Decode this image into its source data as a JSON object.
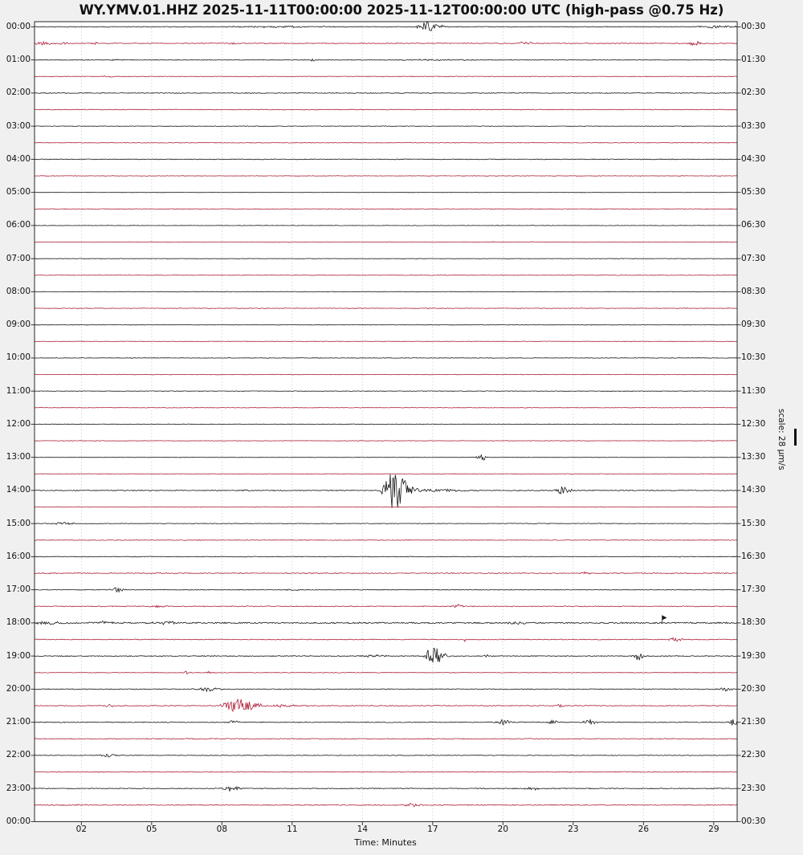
{
  "title": "WY.YMV.01.HHZ 2025-11-11T00:00:00 2025-11-12T00:00:00 UTC (high-pass @0.75 Hz)",
  "chart_data": {
    "type": "line",
    "subtype": "helicorder-dayplot",
    "title": "WY.YMV.01.HHZ 2025-11-11T00:00:00 2025-11-12T00:00:00 UTC (high-pass @0.75 Hz)",
    "xlabel": "Time: Minutes",
    "scale_label": "scale: 28 μm/s",
    "x_range_minutes": [
      0,
      30
    ],
    "minutes_per_line": 30,
    "x_ticks": [
      2,
      5,
      8,
      11,
      14,
      17,
      20,
      23,
      26,
      29
    ],
    "x_tick_labels": [
      "02",
      "05",
      "08",
      "11",
      "14",
      "17",
      "20",
      "23",
      "26",
      "29"
    ],
    "grid": "vertical-dashed",
    "colors": {
      "black_trace": "#161616",
      "red_trace": "#ad2138",
      "grid": "#d4d4d4",
      "spine": "#262626",
      "plot_bg": "#ffffff",
      "fig_bg": "#f0f0f0"
    },
    "left_axis_labels": [
      "00:00",
      "01:00",
      "02:00",
      "03:00",
      "04:00",
      "05:00",
      "06:00",
      "07:00",
      "08:00",
      "09:00",
      "10:00",
      "11:00",
      "12:00",
      "13:00",
      "14:00",
      "15:00",
      "16:00",
      "17:00",
      "18:00",
      "19:00",
      "20:00",
      "21:00",
      "22:00",
      "23:00",
      "00:00"
    ],
    "right_axis_labels": [
      "00:30",
      "01:30",
      "02:30",
      "03:30",
      "04:30",
      "05:30",
      "06:30",
      "07:30",
      "08:30",
      "09:30",
      "10:30",
      "11:30",
      "12:30",
      "13:30",
      "14:30",
      "15:30",
      "16:30",
      "17:30",
      "18:30",
      "19:30",
      "20:30",
      "21:30",
      "22:30",
      "23:30",
      "00:30"
    ],
    "rows": [
      {
        "start": "00:00",
        "color": "black",
        "noise": 0.45,
        "events": [
          {
            "m": 10.5,
            "a": 0.9,
            "w": 3
          },
          {
            "m": 16.7,
            "a": 7,
            "w": 0.45,
            "t": 2
          },
          {
            "m": 29.2,
            "a": 1.4,
            "w": 1.6
          }
        ]
      },
      {
        "start": "00:30",
        "color": "red",
        "noise": 0.5,
        "events": [
          {
            "m": 0.4,
            "a": 2.2,
            "w": 0.7
          },
          {
            "m": 1.2,
            "a": 1.8,
            "w": 0.35
          },
          {
            "m": 2.6,
            "a": 1.4,
            "w": 0.3
          },
          {
            "m": 8.4,
            "a": 2.6,
            "w": 0.4
          },
          {
            "m": 21.0,
            "a": 2.2,
            "w": 0.5
          },
          {
            "m": 28.2,
            "a": 2.6,
            "w": 0.45
          }
        ]
      },
      {
        "start": "01:00",
        "color": "black",
        "noise": 0.4,
        "events": [
          {
            "m": 3.5,
            "a": 0.8,
            "w": 0.4
          },
          {
            "m": 11.9,
            "a": 3.2,
            "w": 0.12
          },
          {
            "m": 17.0,
            "a": 0.7,
            "w": 3
          }
        ]
      },
      {
        "start": "01:30",
        "color": "red",
        "noise": 0.4,
        "events": [
          {
            "m": 3.2,
            "a": 0.9,
            "w": 0.5
          }
        ]
      },
      {
        "start": "02:00",
        "color": "black",
        "noise": 0.45,
        "events": [
          {
            "m": 8.4,
            "a": 0.9,
            "w": 0.2
          }
        ]
      },
      {
        "start": "02:30",
        "color": "red",
        "noise": 0.4,
        "events": []
      },
      {
        "start": "03:00",
        "color": "black",
        "noise": 0.3,
        "events": []
      },
      {
        "start": "03:30",
        "color": "red",
        "noise": 0.35,
        "events": []
      },
      {
        "start": "04:00",
        "color": "black",
        "noise": 0.45,
        "events": []
      },
      {
        "start": "04:30",
        "color": "red",
        "noise": 0.3,
        "events": []
      },
      {
        "start": "05:00",
        "color": "black",
        "noise": 0.25,
        "events": []
      },
      {
        "start": "05:30",
        "color": "red",
        "noise": 0.35,
        "events": []
      },
      {
        "start": "06:00",
        "color": "black",
        "noise": 0.25,
        "events": []
      },
      {
        "start": "06:30",
        "color": "red",
        "noise": 0.3,
        "events": []
      },
      {
        "start": "07:00",
        "color": "black",
        "noise": 0.25,
        "events": []
      },
      {
        "start": "07:30",
        "color": "red",
        "noise": 0.3,
        "events": []
      },
      {
        "start": "08:00",
        "color": "black",
        "noise": 0.3,
        "events": []
      },
      {
        "start": "08:30",
        "color": "red",
        "noise": 0.35,
        "events": []
      },
      {
        "start": "09:00",
        "color": "black",
        "noise": 0.25,
        "events": []
      },
      {
        "start": "09:30",
        "color": "red",
        "noise": 0.3,
        "events": []
      },
      {
        "start": "10:00",
        "color": "black",
        "noise": 0.3,
        "events": []
      },
      {
        "start": "10:30",
        "color": "red",
        "noise": 0.3,
        "events": []
      },
      {
        "start": "11:00",
        "color": "black",
        "noise": 0.3,
        "events": []
      },
      {
        "start": "11:30",
        "color": "red",
        "noise": 0.3,
        "events": []
      },
      {
        "start": "12:00",
        "color": "black",
        "noise": 0.3,
        "events": []
      },
      {
        "start": "12:30",
        "color": "red",
        "noise": 0.3,
        "events": []
      },
      {
        "start": "13:00",
        "color": "black",
        "noise": 0.3,
        "events": [
          {
            "m": 19.1,
            "a": 4,
            "w": 0.3
          }
        ]
      },
      {
        "start": "13:30",
        "color": "red",
        "noise": 0.3,
        "events": []
      },
      {
        "start": "14:00",
        "color": "black",
        "noise": 0.5,
        "events": [
          {
            "m": 9.0,
            "a": 1.1,
            "w": 0.3
          },
          {
            "m": 15.25,
            "a": 24,
            "w": 0.5,
            "t": 2.2
          },
          {
            "m": 17.3,
            "a": 2,
            "w": 1.5
          },
          {
            "m": 22.6,
            "a": 5,
            "w": 0.5
          }
        ]
      },
      {
        "start": "14:30",
        "color": "red",
        "noise": 0.3,
        "events": []
      },
      {
        "start": "15:00",
        "color": "black",
        "noise": 0.35,
        "events": [
          {
            "m": 1.2,
            "a": 1.6,
            "w": 0.7
          }
        ]
      },
      {
        "start": "15:30",
        "color": "red",
        "noise": 0.4,
        "events": []
      },
      {
        "start": "16:00",
        "color": "black",
        "noise": 0.4,
        "events": []
      },
      {
        "start": "16:30",
        "color": "red",
        "noise": 0.55,
        "events": [
          {
            "m": 23.5,
            "a": 1.4,
            "w": 0.4
          }
        ]
      },
      {
        "start": "17:00",
        "color": "black",
        "noise": 0.4,
        "events": [
          {
            "m": 3.5,
            "a": 3.5,
            "w": 0.4
          },
          {
            "m": 11.0,
            "a": 1.0,
            "w": 0.6
          }
        ]
      },
      {
        "start": "17:30",
        "color": "red",
        "noise": 0.5,
        "events": [
          {
            "m": 5.2,
            "a": 1.0,
            "w": 0.8
          },
          {
            "m": 18.1,
            "a": 2.6,
            "w": 0.3
          }
        ]
      },
      {
        "start": "18:00",
        "color": "black",
        "noise": 0.8,
        "events": [
          {
            "m": 0.6,
            "a": 1.8,
            "w": 0.9
          },
          {
            "m": 3.0,
            "a": 1.5,
            "w": 0.7
          },
          {
            "m": 5.6,
            "a": 1.6,
            "w": 0.9
          },
          {
            "m": 20.6,
            "a": 1.8,
            "w": 0.7
          },
          {
            "m": 26.8,
            "a": 9,
            "w": 0.1,
            "flag": true
          }
        ]
      },
      {
        "start": "18:30",
        "color": "red",
        "noise": 0.5,
        "events": [
          {
            "m": 18.4,
            "a": 2.6,
            "w": 0.25
          },
          {
            "m": 27.4,
            "a": 2.2,
            "w": 0.45
          }
        ]
      },
      {
        "start": "19:00",
        "color": "black",
        "noise": 0.5,
        "events": [
          {
            "m": 14.6,
            "a": 1.6,
            "w": 0.9
          },
          {
            "m": 17.0,
            "a": 12,
            "w": 0.45,
            "t": 1.6
          },
          {
            "m": 19.3,
            "a": 1.6,
            "w": 0.2
          },
          {
            "m": 25.8,
            "a": 5,
            "w": 0.35
          }
        ]
      },
      {
        "start": "19:30",
        "color": "red",
        "noise": 0.4,
        "events": [
          {
            "m": 6.5,
            "a": 1.6,
            "w": 0.3
          },
          {
            "m": 7.5,
            "a": 1.3,
            "w": 0.3
          }
        ]
      },
      {
        "start": "20:00",
        "color": "black",
        "noise": 0.5,
        "events": [
          {
            "m": 7.4,
            "a": 3,
            "w": 0.7
          },
          {
            "m": 29.5,
            "a": 2.2,
            "w": 0.4
          }
        ]
      },
      {
        "start": "20:30",
        "color": "red",
        "noise": 0.5,
        "events": [
          {
            "m": 3.2,
            "a": 1.5,
            "w": 0.4
          },
          {
            "m": 8.45,
            "a": 10,
            "w": 0.55,
            "t": 2.5
          },
          {
            "m": 10.5,
            "a": 1.5,
            "w": 1.5
          },
          {
            "m": 22.4,
            "a": 2.2,
            "w": 0.4
          }
        ]
      },
      {
        "start": "21:00",
        "color": "black",
        "noise": 0.5,
        "events": [
          {
            "m": 8.5,
            "a": 3,
            "w": 0.3
          },
          {
            "m": 20.0,
            "a": 4,
            "w": 0.4
          },
          {
            "m": 22.1,
            "a": 3,
            "w": 0.3
          },
          {
            "m": 23.7,
            "a": 3.5,
            "w": 0.4
          },
          {
            "m": 29.85,
            "a": 6,
            "w": 0.25
          }
        ]
      },
      {
        "start": "21:30",
        "color": "red",
        "noise": 0.5,
        "events": []
      },
      {
        "start": "22:00",
        "color": "black",
        "noise": 0.4,
        "events": [
          {
            "m": 3.2,
            "a": 2.6,
            "w": 0.45
          }
        ]
      },
      {
        "start": "22:30",
        "color": "red",
        "noise": 0.5,
        "events": []
      },
      {
        "start": "23:00",
        "color": "black",
        "noise": 0.5,
        "events": [
          {
            "m": 8.4,
            "a": 3.6,
            "w": 0.5
          },
          {
            "m": 21.3,
            "a": 2,
            "w": 0.5
          }
        ]
      },
      {
        "start": "23:30",
        "color": "red",
        "noise": 0.5,
        "events": [
          {
            "m": 2.0,
            "a": 1.0,
            "w": 0.4
          },
          {
            "m": 16.2,
            "a": 2.6,
            "w": 0.5
          }
        ]
      }
    ]
  }
}
